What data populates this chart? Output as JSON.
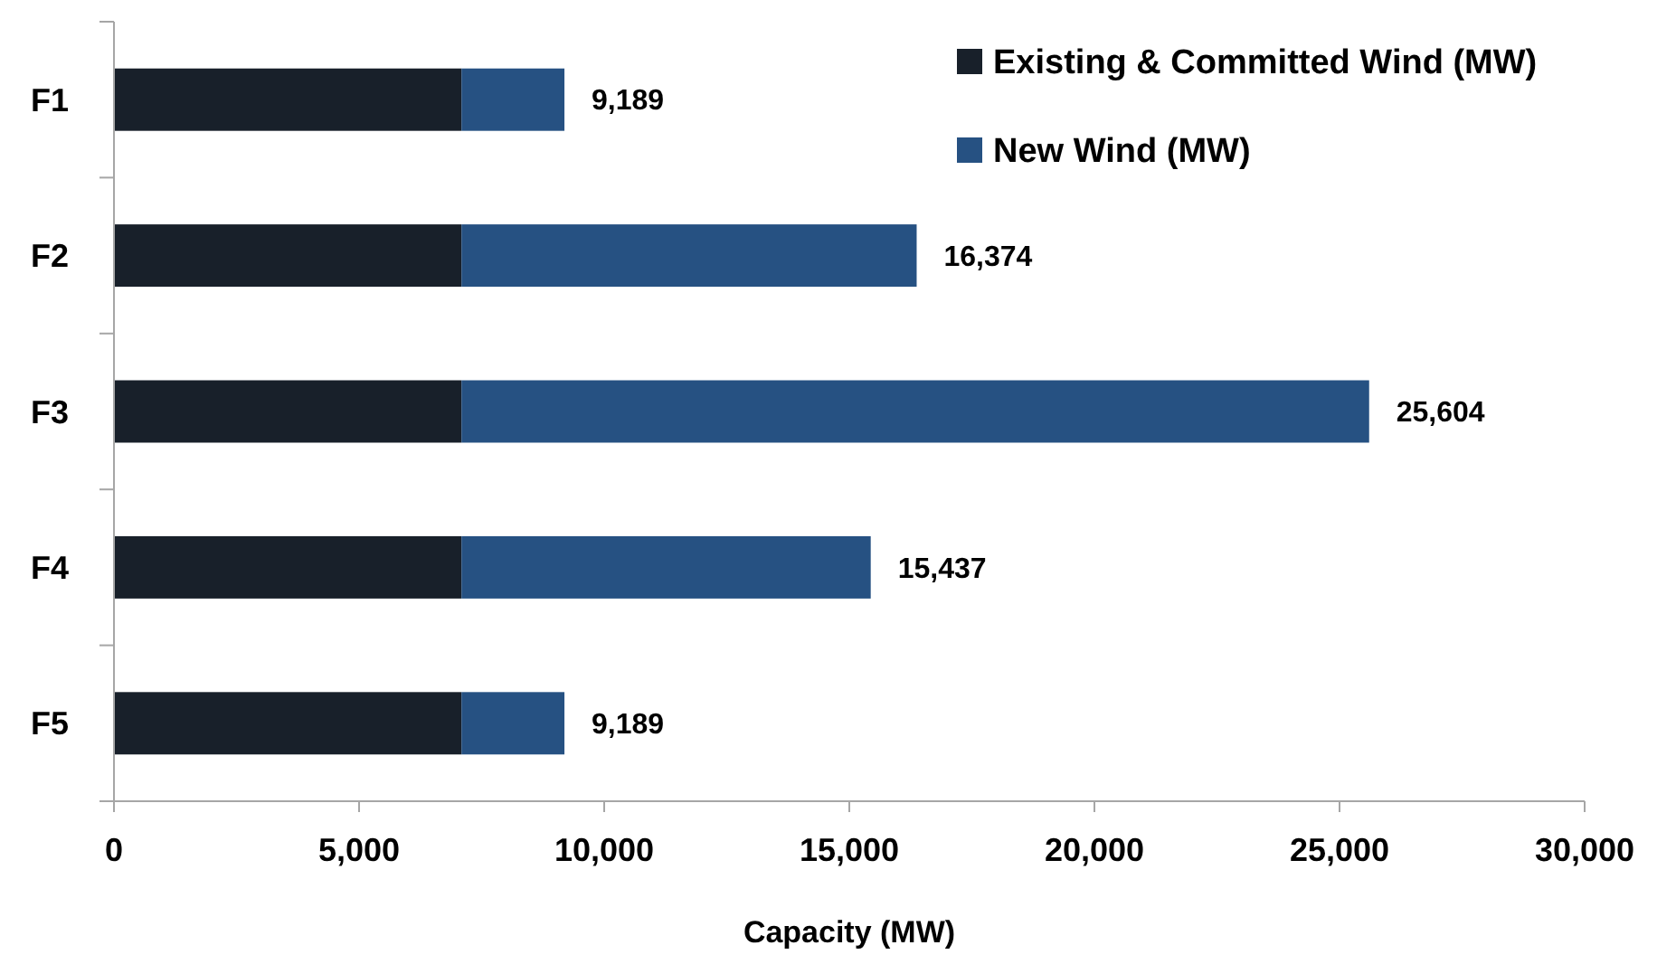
{
  "chart_data": {
    "type": "bar",
    "orientation": "horizontal",
    "stacked": true,
    "xlabel": "Capacity (MW)",
    "categories": [
      "F1",
      "F2",
      "F3",
      "F4",
      "F5"
    ],
    "series": [
      {
        "name": "Existing & Committed Wind (MW)",
        "color": "#18202a",
        "values": [
          7089,
          7089,
          7089,
          7089,
          7089
        ]
      },
      {
        "name": "New Wind (MW)",
        "color": "#265182",
        "values": [
          2100,
          9285,
          18515,
          8348,
          2100
        ]
      }
    ],
    "totals": [
      "9,189",
      "16,374",
      "25,604",
      "15,437",
      "9,189"
    ],
    "xlim": [
      0,
      30000
    ],
    "xticks": [
      {
        "value": 0,
        "label": "0"
      },
      {
        "value": 5000,
        "label": "5,000"
      },
      {
        "value": 10000,
        "label": "10,000"
      },
      {
        "value": 15000,
        "label": "15,000"
      },
      {
        "value": 20000,
        "label": "20,000"
      },
      {
        "value": 25000,
        "label": "25,000"
      },
      {
        "value": 30000,
        "label": "30,000"
      }
    ],
    "grid": false,
    "legend": "top right"
  }
}
